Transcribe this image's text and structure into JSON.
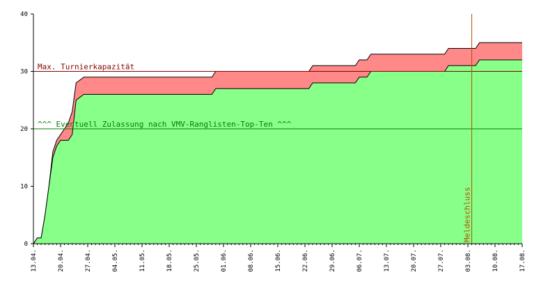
{
  "chart_data": {
    "type": "area",
    "title": "",
    "xlabel": "",
    "ylabel": "",
    "ylim": [
      0,
      40
    ],
    "yticks": [
      "0",
      "10",
      "20",
      "30",
      "40"
    ],
    "yticks_values": [
      0,
      10,
      20,
      30,
      40
    ],
    "xlim": [
      "2024-04-13",
      "2024-08-17"
    ],
    "xticks": [
      "13.04.",
      "20.04.",
      "27.04.",
      "04.05.",
      "11.05.",
      "18.05.",
      "25.05.",
      "01.06.",
      "08.06.",
      "15.06.",
      "22.06.",
      "29.06.",
      "06.07.",
      "13.07.",
      "20.07.",
      "27.07.",
      "03.08.",
      "10.08.",
      "17.08."
    ],
    "xticks_dates": [
      "2024-04-13",
      "2024-04-20",
      "2024-04-27",
      "2024-05-04",
      "2024-05-11",
      "2024-05-18",
      "2024-05-25",
      "2024-06-01",
      "2024-06-08",
      "2024-06-15",
      "2024-06-22",
      "2024-06-29",
      "2024-07-06",
      "2024-07-13",
      "2024-07-20",
      "2024-07-27",
      "2024-08-03",
      "2024-08-10",
      "2024-08-17"
    ],
    "series": [
      {
        "color": "#ff8888",
        "x": [
          "2024-04-13",
          "2024-04-14",
          "2024-04-15",
          "2024-04-16",
          "2024-04-17",
          "2024-04-18",
          "2024-04-19",
          "2024-04-20",
          "2024-04-21",
          "2024-04-22",
          "2024-04-23",
          "2024-04-24",
          "2024-04-26",
          "2024-05-29",
          "2024-05-30",
          "2024-06-23",
          "2024-06-24",
          "2024-07-05",
          "2024-07-06",
          "2024-07-08",
          "2024-07-09",
          "2024-07-28",
          "2024-07-29",
          "2024-08-05",
          "2024-08-06",
          "2024-08-17"
        ],
        "values": [
          0,
          1,
          1,
          5,
          10,
          16,
          18,
          19,
          20,
          21,
          23,
          28,
          29,
          29,
          30,
          30,
          31,
          31,
          32,
          32,
          33,
          33,
          34,
          34,
          35,
          35
        ]
      },
      {
        "color": "#88ff88",
        "x": [
          "2024-04-13",
          "2024-04-14",
          "2024-04-15",
          "2024-04-16",
          "2024-04-17",
          "2024-04-18",
          "2024-04-19",
          "2024-04-20",
          "2024-04-21",
          "2024-04-22",
          "2024-04-23",
          "2024-04-24",
          "2024-04-26",
          "2024-05-29",
          "2024-05-30",
          "2024-06-23",
          "2024-06-24",
          "2024-07-05",
          "2024-07-06",
          "2024-07-08",
          "2024-07-09",
          "2024-07-28",
          "2024-07-29",
          "2024-08-05",
          "2024-08-06",
          "2024-08-17"
        ],
        "values": [
          0,
          1,
          1,
          5,
          10,
          15,
          17,
          18,
          18,
          18,
          19,
          25,
          26,
          26,
          27,
          27,
          28,
          28,
          29,
          29,
          30,
          30,
          31,
          31,
          32,
          32
        ]
      }
    ],
    "reference_lines": [
      {
        "axis": "y",
        "value": 30,
        "label": "Max. Turnierkapazität",
        "color": "#800000"
      },
      {
        "axis": "y",
        "value": 20,
        "label": "^^^ Eventuell Zulassung nach VMV-Ranglisten-Top-Ten ^^^",
        "color": "#008000"
      },
      {
        "axis": "x",
        "value": "2024-08-04",
        "label": "Meldeschluss",
        "color": "#b05000"
      }
    ],
    "grid": false,
    "legend": "none"
  }
}
